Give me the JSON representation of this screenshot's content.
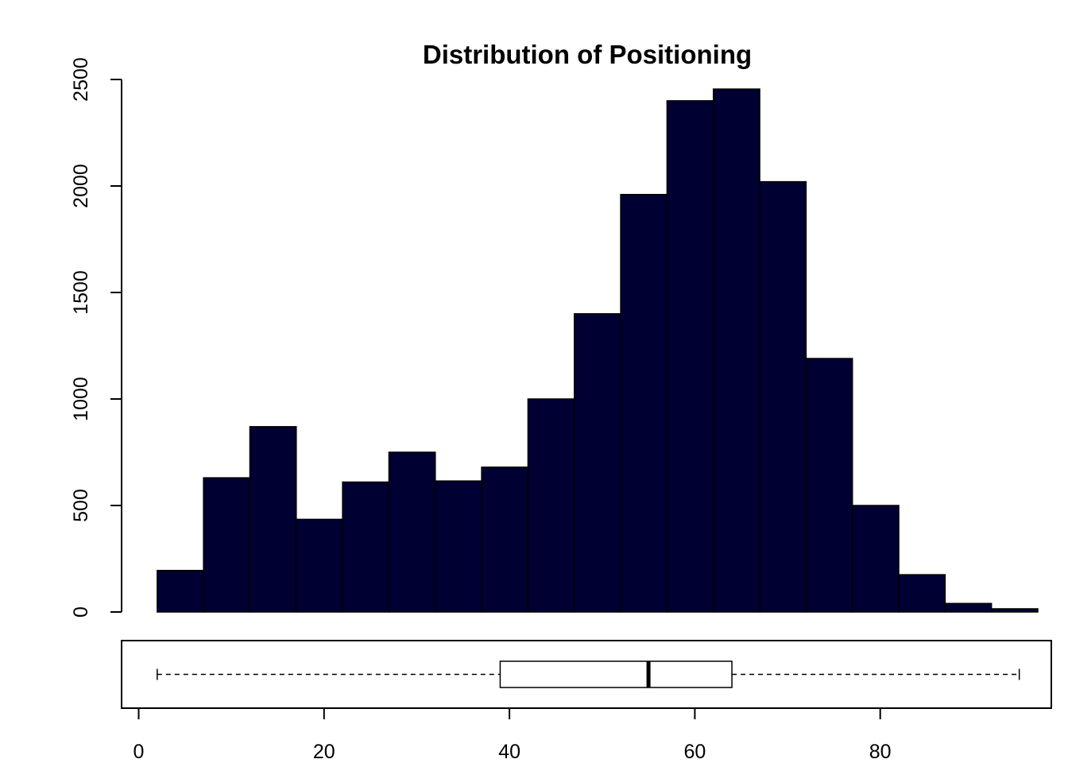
{
  "chart_data": {
    "type": "bar",
    "title": "Distribution of Positioning",
    "xlabel": "",
    "ylabel": "",
    "bar_color": "#000033",
    "histogram": {
      "bin_edges": [
        2,
        7,
        12,
        17,
        22,
        27,
        32,
        37,
        42,
        47,
        52,
        57,
        62,
        67,
        72,
        77,
        82,
        87,
        92,
        97
      ],
      "counts": [
        195,
        630,
        870,
        435,
        610,
        750,
        615,
        680,
        1000,
        1400,
        1960,
        2400,
        2455,
        2020,
        1190,
        500,
        175,
        40,
        15
      ],
      "ylim": [
        0,
        2500
      ],
      "y_ticks": [
        "0",
        "500",
        "1000",
        "1500",
        "2000",
        "2500"
      ]
    },
    "boxplot": {
      "min": 2,
      "q1": 39,
      "median": 55,
      "q3": 64,
      "max": 95
    },
    "x_axis": {
      "ticks": [
        "0",
        "20",
        "40",
        "60",
        "80"
      ]
    }
  }
}
